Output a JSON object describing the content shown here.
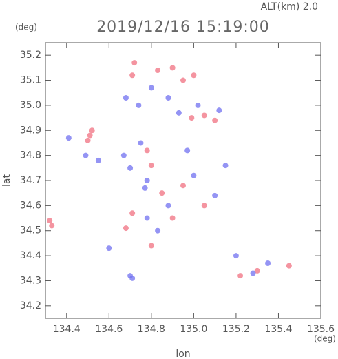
{
  "chart_data": {
    "type": "scatter",
    "title": "2019/12/16 15:19:00",
    "subtitle": "ALT(km) 2.0",
    "x_unit": "(deg)",
    "y_unit": "(deg)",
    "x_label": "lon",
    "y_label": "lat",
    "xlim": [
      134.3,
      135.6
    ],
    "ylim": [
      34.15,
      35.25
    ],
    "xticks": [
      {
        "value": 134.4,
        "label": "134.4"
      },
      {
        "value": 134.6,
        "label": "134.6"
      },
      {
        "value": 134.8,
        "label": "134.8"
      },
      {
        "value": 135.0,
        "label": "135.0"
      },
      {
        "value": 135.2,
        "label": "135.2"
      },
      {
        "value": 135.4,
        "label": "135.4"
      },
      {
        "value": 135.6,
        "label": "135.6"
      }
    ],
    "yticks": [
      {
        "value": 34.2,
        "label": "34.2"
      },
      {
        "value": 34.3,
        "label": "34.3"
      },
      {
        "value": 34.4,
        "label": "34.4"
      },
      {
        "value": 34.5,
        "label": "34.5"
      },
      {
        "value": 34.6,
        "label": "34.6"
      },
      {
        "value": 34.7,
        "label": "34.7"
      },
      {
        "value": 34.8,
        "label": "34.8"
      },
      {
        "value": 34.9,
        "label": "34.9"
      },
      {
        "value": 35.0,
        "label": "35.0"
      },
      {
        "value": 35.1,
        "label": "35.1"
      },
      {
        "value": 35.2,
        "label": "35.2"
      }
    ],
    "series": [
      {
        "color": "#f07080",
        "x": [
          134.32,
          134.33,
          134.51,
          134.52,
          134.5,
          134.72,
          134.71,
          134.83,
          134.9,
          134.95,
          135.0,
          134.99,
          135.05,
          135.1,
          134.78,
          134.8,
          134.85,
          134.9,
          134.8,
          134.68,
          134.71,
          135.45,
          135.3,
          135.22,
          134.95,
          135.05
        ],
        "values": [
          34.54,
          34.52,
          34.88,
          34.9,
          34.86,
          35.17,
          35.12,
          35.14,
          35.15,
          35.1,
          35.12,
          34.95,
          34.96,
          34.94,
          34.82,
          34.76,
          34.65,
          34.55,
          34.44,
          34.51,
          34.57,
          34.36,
          34.34,
          34.32,
          34.68,
          34.6
        ]
      },
      {
        "color": "#7070f0",
        "x": [
          134.7,
          134.71,
          134.41,
          134.49,
          134.55,
          134.67,
          134.75,
          134.7,
          134.78,
          134.74,
          134.68,
          134.8,
          134.88,
          134.93,
          135.02,
          135.12,
          134.83,
          134.78,
          134.88,
          135.0,
          135.1,
          135.28,
          135.35,
          135.2,
          134.97,
          135.15,
          134.6,
          134.77
        ],
        "values": [
          34.32,
          34.31,
          34.87,
          34.8,
          34.78,
          34.8,
          34.85,
          34.75,
          34.7,
          35.0,
          35.03,
          35.07,
          35.03,
          34.97,
          35.0,
          34.98,
          34.5,
          34.55,
          34.6,
          34.72,
          34.64,
          34.33,
          34.37,
          34.4,
          34.82,
          34.76,
          34.43,
          34.67
        ]
      }
    ]
  }
}
